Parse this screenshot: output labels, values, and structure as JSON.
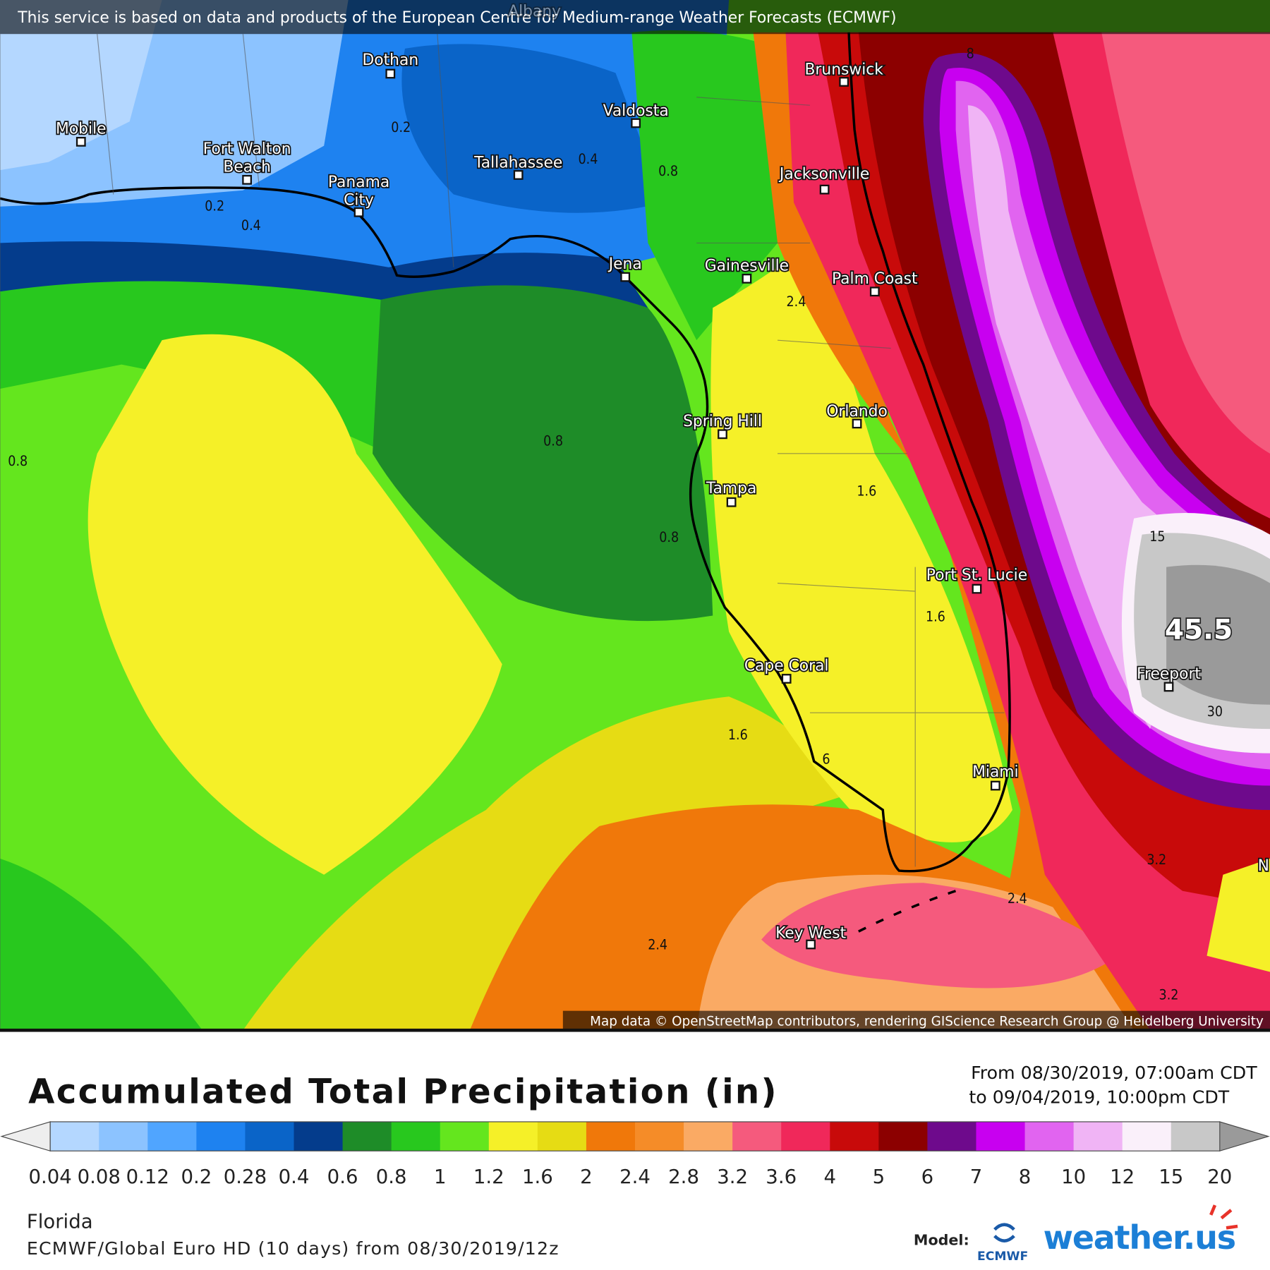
{
  "header": {
    "credit": "This service is based on data and products of the European Centre for Medium-range Weather Forecasts (ECMWF)"
  },
  "map": {
    "cities": [
      {
        "label": "Albany"
      },
      {
        "label": "Mobile"
      },
      {
        "label": [
          "Fort Walton",
          "Beach"
        ]
      },
      {
        "label": "Dothan"
      },
      {
        "label": "Valdosta"
      },
      {
        "label": "Tallahassee"
      },
      {
        "label": [
          "Panama",
          "City"
        ]
      },
      {
        "label": "Brunswick"
      },
      {
        "label": "Jacksonville"
      },
      {
        "label": "Jena"
      },
      {
        "label": "Gainesville"
      },
      {
        "label": "Palm Coast"
      },
      {
        "label": "Spring Hill"
      },
      {
        "label": "Orlando"
      },
      {
        "label": "Tampa"
      },
      {
        "label": "Port St. Lucie"
      },
      {
        "label": "Cape Coral"
      },
      {
        "label": "Miami"
      },
      {
        "label": "Key West"
      },
      {
        "label": "Freeport"
      },
      {
        "label": "N"
      }
    ],
    "contour_labels": [
      "0.2",
      "0.4",
      "0.8",
      "0.2",
      "0.4",
      "0.8",
      "0.8",
      "0.8",
      "2.4",
      "1.6",
      "1.6",
      "1.6",
      "6",
      "2.4",
      "2.4",
      "3.2",
      "3.2",
      "15",
      "30",
      "8"
    ],
    "max_label": "45.5",
    "attribution": "Map data © OpenStreetMap contributors, rendering GIScience Research Group @ Heidelberg University"
  },
  "legend": {
    "title": "Accumulated Total Precipitation (in)",
    "period": [
      "From 08/30/2019, 07:00am CDT",
      "to 09/04/2019, 10:00pm CDT"
    ],
    "colors": [
      "#b4d7ff",
      "#8cc3ff",
      "#50a5ff",
      "#1e82f0",
      "#0a64c8",
      "#043c8c",
      "#1e8c28",
      "#28c81e",
      "#64e61e",
      "#f5f028",
      "#e6dc14",
      "#f0780a",
      "#f58c28",
      "#faaa64",
      "#f55a7d",
      "#f0285a",
      "#c80a0a",
      "#8c0000",
      "#6e0a8c",
      "#c800f0",
      "#e164f0",
      "#f0b4f5",
      "#faf0fa",
      "#c8c8c8"
    ],
    "under_color": "#eeeeee",
    "over_color": "#9a9a9a",
    "ticks": [
      "0.04",
      "0.08",
      "0.12",
      "0.2",
      "0.28",
      "0.4",
      "0.6",
      "0.8",
      "1",
      "1.2",
      "1.6",
      "2",
      "2.4",
      "2.8",
      "3.2",
      "3.6",
      "4",
      "5",
      "6",
      "7",
      "8",
      "10",
      "12",
      "15",
      "20"
    ]
  },
  "footer": {
    "region": "Florida",
    "model_run": "ECMWF/Global Euro HD (10 days) from 08/30/2019/12z",
    "model_label": "Model:",
    "ecmwf": "ECMWF",
    "brand": "weather.us"
  }
}
